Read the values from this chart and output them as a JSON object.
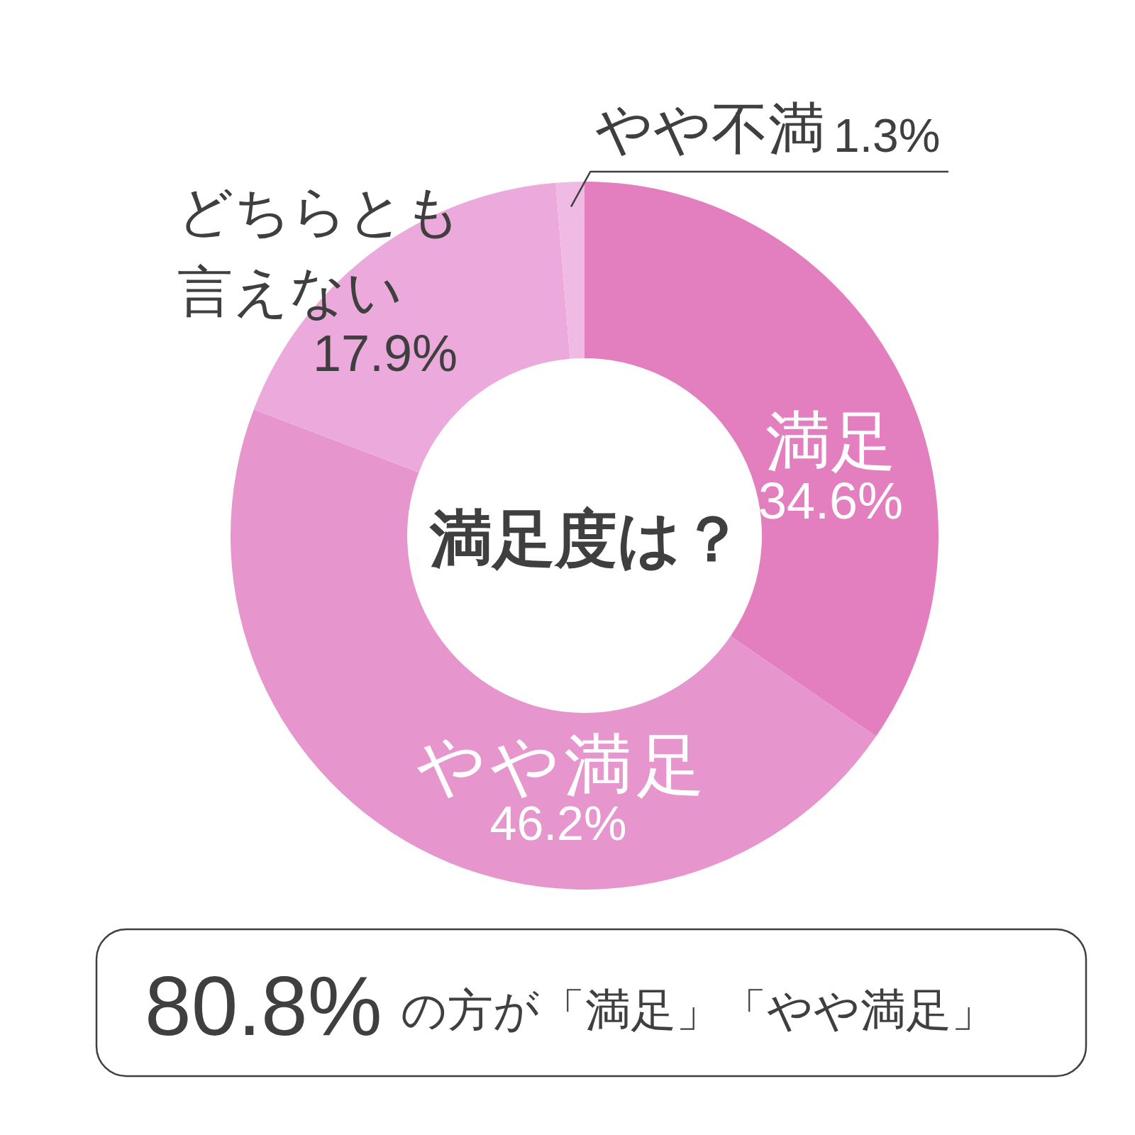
{
  "chart_data": {
    "type": "donut",
    "title": "満足度は？",
    "categories": [
      "満足",
      "やや満足",
      "どちらとも言えない",
      "やや不満"
    ],
    "values": [
      34.6,
      46.2,
      17.9,
      1.3
    ],
    "colors": [
      "#e37fbf",
      "#e695cd",
      "#ebaadb",
      "#efbae3"
    ],
    "value_labels": [
      "34.6%",
      "46.2%",
      "17.9%",
      "1.3%"
    ],
    "annotations": [
      "80.8%",
      "の方が「満足」「やや満足」"
    ]
  }
}
